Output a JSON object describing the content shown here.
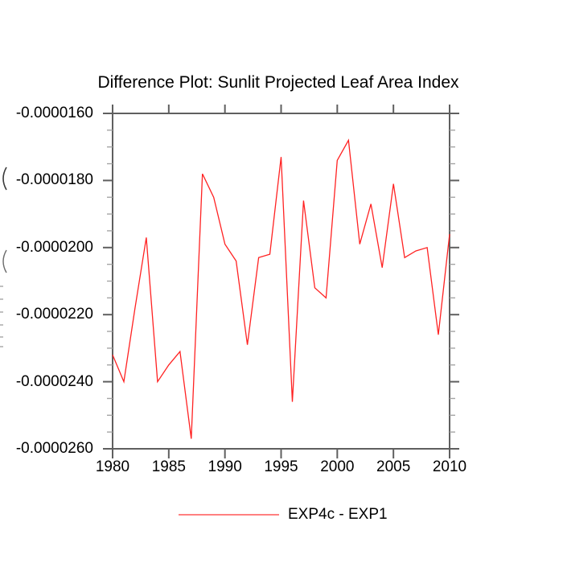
{
  "chart_data": {
    "type": "line",
    "title": "Difference Plot: Sunlit Projected Leaf Area Index",
    "xlabel": "",
    "ylabel": "",
    "y_axis_title_clipped": true,
    "xlim": [
      1980,
      2010
    ],
    "ylim": [
      -2.6e-05,
      -1.6e-05
    ],
    "grid": false,
    "legend_position": "bottom-center",
    "x_ticks": [
      1980,
      1985,
      1990,
      1995,
      2000,
      2005,
      2010
    ],
    "x_tick_labels": [
      "1980",
      "1985",
      "1990",
      "1995",
      "2000",
      "2005",
      "2010"
    ],
    "y_ticks": [
      -1.6e-05,
      -1.8e-05,
      -2e-05,
      -2.2e-05,
      -2.4e-05,
      -2.6e-05
    ],
    "y_tick_labels": [
      "-0.0000160",
      "-0.0000180",
      "-0.0000200",
      "-0.0000220",
      "-0.0000240",
      "-0.0000260"
    ],
    "y_minor_step": 5e-07,
    "x": [
      1980,
      1981,
      1982,
      1983,
      1984,
      1985,
      1986,
      1987,
      1988,
      1989,
      1990,
      1991,
      1992,
      1993,
      1994,
      1995,
      1996,
      1997,
      1998,
      1999,
      2000,
      2001,
      2002,
      2003,
      2004,
      2005,
      2006,
      2007,
      2008,
      2009,
      2010
    ],
    "series": [
      {
        "name": "EXP4c - EXP1",
        "color": "#ff2222",
        "legend_line_color": "#ff8080",
        "values": [
          -2.32e-05,
          -2.4e-05,
          -2.18e-05,
          -1.97e-05,
          -2.4e-05,
          -2.35e-05,
          -2.31e-05,
          -2.57e-05,
          -1.78e-05,
          -1.85e-05,
          -1.99e-05,
          -2.04e-05,
          -2.29e-05,
          -2.03e-05,
          -2.02e-05,
          -1.73e-05,
          -2.46e-05,
          -1.86e-05,
          -2.12e-05,
          -2.15e-05,
          -1.74e-05,
          -1.68e-05,
          -1.99e-05,
          -1.87e-05,
          -2.06e-05,
          -1.81e-05,
          -2.03e-05,
          -2.01e-05,
          -2e-05,
          -2.26e-05,
          -1.96e-05
        ]
      }
    ],
    "colors": {
      "axis": "#5f5f5f",
      "minor_tick": "#a5a5a5",
      "text": "#000000",
      "background": "#ffffff"
    }
  }
}
